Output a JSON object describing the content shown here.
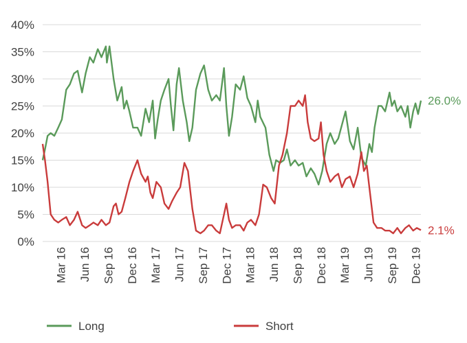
{
  "chart_data": {
    "type": "line",
    "title": "",
    "xlabel": "",
    "ylabel": "",
    "ylim": [
      0,
      40
    ],
    "y_ticks": [
      0,
      5,
      10,
      15,
      20,
      25,
      30,
      35,
      40
    ],
    "y_tick_labels": [
      "0%",
      "5%",
      "10%",
      "15%",
      "20%",
      "25%",
      "30%",
      "35%",
      "40%"
    ],
    "x_range": [
      "2016-01-01",
      "2019-12-31"
    ],
    "x_ticks": [
      "2016-03",
      "2016-06",
      "2016-09",
      "2016-12",
      "2017-03",
      "2017-06",
      "2017-09",
      "2017-12",
      "2018-03",
      "2018-06",
      "2018-09",
      "2018-12",
      "2019-03",
      "2019-06",
      "2019-09",
      "2019-12"
    ],
    "x_tick_labels": [
      "Mar 16",
      "Jun 16",
      "Sep 16",
      "Dec 16",
      "Mar 17",
      "Jun 17",
      "Sep 17",
      "Dec 17",
      "Mar 18",
      "Jun 18",
      "Sep 18",
      "Dec 18",
      "Mar 19",
      "Jun 19",
      "Sep 19",
      "Dec 19"
    ],
    "grid": "horizontal",
    "legend_position": "bottom",
    "series": [
      {
        "name": "Long",
        "color": "#5a9a5a",
        "end_label": "26.0%",
        "points": [
          [
            "2016-01-01",
            15
          ],
          [
            "2016-01-10",
            17
          ],
          [
            "2016-01-20",
            19.5
          ],
          [
            "2016-02-01",
            20
          ],
          [
            "2016-02-15",
            19.5
          ],
          [
            "2016-03-01",
            21
          ],
          [
            "2016-03-15",
            22.5
          ],
          [
            "2016-04-01",
            28
          ],
          [
            "2016-04-15",
            29
          ],
          [
            "2016-05-01",
            31
          ],
          [
            "2016-05-15",
            31.5
          ],
          [
            "2016-06-01",
            27.5
          ],
          [
            "2016-06-15",
            31
          ],
          [
            "2016-07-01",
            34
          ],
          [
            "2016-07-15",
            33
          ],
          [
            "2016-08-01",
            35.5
          ],
          [
            "2016-08-15",
            34
          ],
          [
            "2016-09-01",
            36
          ],
          [
            "2016-09-05",
            33
          ],
          [
            "2016-09-15",
            36
          ],
          [
            "2016-10-01",
            30
          ],
          [
            "2016-10-15",
            26
          ],
          [
            "2016-11-01",
            28.5
          ],
          [
            "2016-11-10",
            24.5
          ],
          [
            "2016-11-20",
            26
          ],
          [
            "2016-12-01",
            24
          ],
          [
            "2016-12-15",
            21
          ],
          [
            "2017-01-01",
            21
          ],
          [
            "2017-01-15",
            19.5
          ],
          [
            "2017-02-01",
            24.5
          ],
          [
            "2017-02-15",
            22
          ],
          [
            "2017-03-01",
            26
          ],
          [
            "2017-03-10",
            19
          ],
          [
            "2017-03-20",
            22.5
          ],
          [
            "2017-04-01",
            26
          ],
          [
            "2017-04-15",
            28
          ],
          [
            "2017-05-01",
            30
          ],
          [
            "2017-05-10",
            25
          ],
          [
            "2017-05-20",
            20.5
          ],
          [
            "2017-06-01",
            29
          ],
          [
            "2017-06-10",
            32
          ],
          [
            "2017-06-25",
            26
          ],
          [
            "2017-07-10",
            22
          ],
          [
            "2017-07-20",
            18.5
          ],
          [
            "2017-08-01",
            21
          ],
          [
            "2017-08-15",
            28
          ],
          [
            "2017-09-01",
            31
          ],
          [
            "2017-09-15",
            32.5
          ],
          [
            "2017-10-01",
            28
          ],
          [
            "2017-10-15",
            26
          ],
          [
            "2017-11-01",
            27
          ],
          [
            "2017-11-15",
            26
          ],
          [
            "2017-12-01",
            32
          ],
          [
            "2017-12-10",
            25
          ],
          [
            "2017-12-20",
            19.5
          ],
          [
            "2018-01-01",
            23
          ],
          [
            "2018-01-15",
            29
          ],
          [
            "2018-02-01",
            28
          ],
          [
            "2018-02-15",
            30.5
          ],
          [
            "2018-03-01",
            26.5
          ],
          [
            "2018-03-15",
            25
          ],
          [
            "2018-04-01",
            22
          ],
          [
            "2018-04-10",
            26
          ],
          [
            "2018-04-20",
            23
          ],
          [
            "2018-05-10",
            21
          ],
          [
            "2018-05-25",
            16
          ],
          [
            "2018-06-10",
            13
          ],
          [
            "2018-06-20",
            15
          ],
          [
            "2018-07-05",
            14.5
          ],
          [
            "2018-07-20",
            15
          ],
          [
            "2018-08-01",
            17
          ],
          [
            "2018-08-15",
            14
          ],
          [
            "2018-09-01",
            15
          ],
          [
            "2018-09-15",
            14
          ],
          [
            "2018-10-01",
            14.5
          ],
          [
            "2018-10-15",
            12
          ],
          [
            "2018-11-01",
            13.5
          ],
          [
            "2018-11-15",
            12.5
          ],
          [
            "2018-12-01",
            10.5
          ],
          [
            "2018-12-15",
            13
          ],
          [
            "2019-01-01",
            18
          ],
          [
            "2019-01-15",
            20
          ],
          [
            "2019-02-01",
            18
          ],
          [
            "2019-02-15",
            19
          ],
          [
            "2019-03-01",
            21.5
          ],
          [
            "2019-03-15",
            24
          ],
          [
            "2019-04-01",
            18.5
          ],
          [
            "2019-04-15",
            17
          ],
          [
            "2019-05-01",
            21
          ],
          [
            "2019-05-15",
            15.5
          ],
          [
            "2019-06-01",
            14
          ],
          [
            "2019-06-15",
            18
          ],
          [
            "2019-06-25",
            16.5
          ],
          [
            "2019-07-05",
            21
          ],
          [
            "2019-07-20",
            25
          ],
          [
            "2019-08-01",
            25
          ],
          [
            "2019-08-15",
            24
          ],
          [
            "2019-09-01",
            27.5
          ],
          [
            "2019-09-10",
            25
          ],
          [
            "2019-09-20",
            26
          ],
          [
            "2019-10-01",
            24
          ],
          [
            "2019-10-15",
            25
          ],
          [
            "2019-11-01",
            23
          ],
          [
            "2019-11-10",
            25
          ],
          [
            "2019-11-20",
            21
          ],
          [
            "2019-12-01",
            24
          ],
          [
            "2019-12-10",
            25.5
          ],
          [
            "2019-12-20",
            23.5
          ],
          [
            "2019-12-31",
            26
          ]
        ]
      },
      {
        "name": "Short",
        "color": "#c93b3b",
        "end_label": "2.1%",
        "points": [
          [
            "2016-01-01",
            18
          ],
          [
            "2016-01-10",
            15
          ],
          [
            "2016-01-20",
            11
          ],
          [
            "2016-02-01",
            5
          ],
          [
            "2016-02-15",
            4
          ],
          [
            "2016-03-01",
            3.5
          ],
          [
            "2016-03-15",
            4
          ],
          [
            "2016-04-01",
            4.5
          ],
          [
            "2016-04-15",
            3
          ],
          [
            "2016-05-01",
            4
          ],
          [
            "2016-05-15",
            5.5
          ],
          [
            "2016-06-01",
            3
          ],
          [
            "2016-06-15",
            2.5
          ],
          [
            "2016-07-01",
            3
          ],
          [
            "2016-07-15",
            3.5
          ],
          [
            "2016-08-01",
            3
          ],
          [
            "2016-08-15",
            4
          ],
          [
            "2016-09-01",
            3
          ],
          [
            "2016-09-15",
            3.5
          ],
          [
            "2016-10-01",
            6.5
          ],
          [
            "2016-10-10",
            7
          ],
          [
            "2016-10-20",
            5
          ],
          [
            "2016-11-01",
            5.5
          ],
          [
            "2016-11-15",
            8
          ],
          [
            "2016-12-01",
            11
          ],
          [
            "2016-12-15",
            13
          ],
          [
            "2017-01-01",
            15
          ],
          [
            "2017-01-15",
            12.5
          ],
          [
            "2017-02-01",
            11
          ],
          [
            "2017-02-10",
            12
          ],
          [
            "2017-02-20",
            9
          ],
          [
            "2017-03-01",
            8
          ],
          [
            "2017-03-15",
            11
          ],
          [
            "2017-04-01",
            10
          ],
          [
            "2017-04-15",
            7
          ],
          [
            "2017-05-01",
            6
          ],
          [
            "2017-05-15",
            7.5
          ],
          [
            "2017-06-01",
            9
          ],
          [
            "2017-06-15",
            10
          ],
          [
            "2017-07-01",
            14.5
          ],
          [
            "2017-07-15",
            13
          ],
          [
            "2017-08-01",
            6
          ],
          [
            "2017-08-15",
            2
          ],
          [
            "2017-09-01",
            1.5
          ],
          [
            "2017-09-15",
            2
          ],
          [
            "2017-10-01",
            3
          ],
          [
            "2017-10-15",
            3
          ],
          [
            "2017-11-01",
            2
          ],
          [
            "2017-11-15",
            1.5
          ],
          [
            "2017-12-01",
            5
          ],
          [
            "2017-12-10",
            7
          ],
          [
            "2017-12-20",
            4
          ],
          [
            "2018-01-01",
            2.5
          ],
          [
            "2018-01-15",
            3
          ],
          [
            "2018-02-01",
            3
          ],
          [
            "2018-02-15",
            2
          ],
          [
            "2018-03-01",
            3.5
          ],
          [
            "2018-03-15",
            4
          ],
          [
            "2018-04-01",
            3
          ],
          [
            "2018-04-15",
            5
          ],
          [
            "2018-05-01",
            10.5
          ],
          [
            "2018-05-15",
            10
          ],
          [
            "2018-06-01",
            8
          ],
          [
            "2018-06-15",
            7
          ],
          [
            "2018-07-01",
            14
          ],
          [
            "2018-07-15",
            16
          ],
          [
            "2018-08-01",
            20
          ],
          [
            "2018-08-15",
            25
          ],
          [
            "2018-09-01",
            25
          ],
          [
            "2018-09-15",
            26
          ],
          [
            "2018-10-01",
            25
          ],
          [
            "2018-10-10",
            27
          ],
          [
            "2018-10-20",
            22
          ],
          [
            "2018-11-01",
            19
          ],
          [
            "2018-11-15",
            18.5
          ],
          [
            "2018-12-01",
            19
          ],
          [
            "2018-12-10",
            22
          ],
          [
            "2018-12-20",
            16
          ],
          [
            "2019-01-01",
            13
          ],
          [
            "2019-01-15",
            11
          ],
          [
            "2019-02-01",
            12
          ],
          [
            "2019-02-15",
            12.5
          ],
          [
            "2019-03-01",
            10
          ],
          [
            "2019-03-15",
            11.5
          ],
          [
            "2019-04-01",
            12
          ],
          [
            "2019-04-15",
            10
          ],
          [
            "2019-05-01",
            12.5
          ],
          [
            "2019-05-15",
            16.5
          ],
          [
            "2019-05-25",
            13
          ],
          [
            "2019-06-05",
            14
          ],
          [
            "2019-06-15",
            10
          ],
          [
            "2019-07-01",
            3.5
          ],
          [
            "2019-07-15",
            2.5
          ],
          [
            "2019-08-01",
            2.5
          ],
          [
            "2019-08-15",
            2
          ],
          [
            "2019-09-01",
            2
          ],
          [
            "2019-09-15",
            1.5
          ],
          [
            "2019-10-01",
            2.5
          ],
          [
            "2019-10-15",
            1.5
          ],
          [
            "2019-11-01",
            2.5
          ],
          [
            "2019-11-15",
            3
          ],
          [
            "2019-12-01",
            2
          ],
          [
            "2019-12-15",
            2.5
          ],
          [
            "2019-12-31",
            2.1
          ]
        ]
      }
    ]
  }
}
